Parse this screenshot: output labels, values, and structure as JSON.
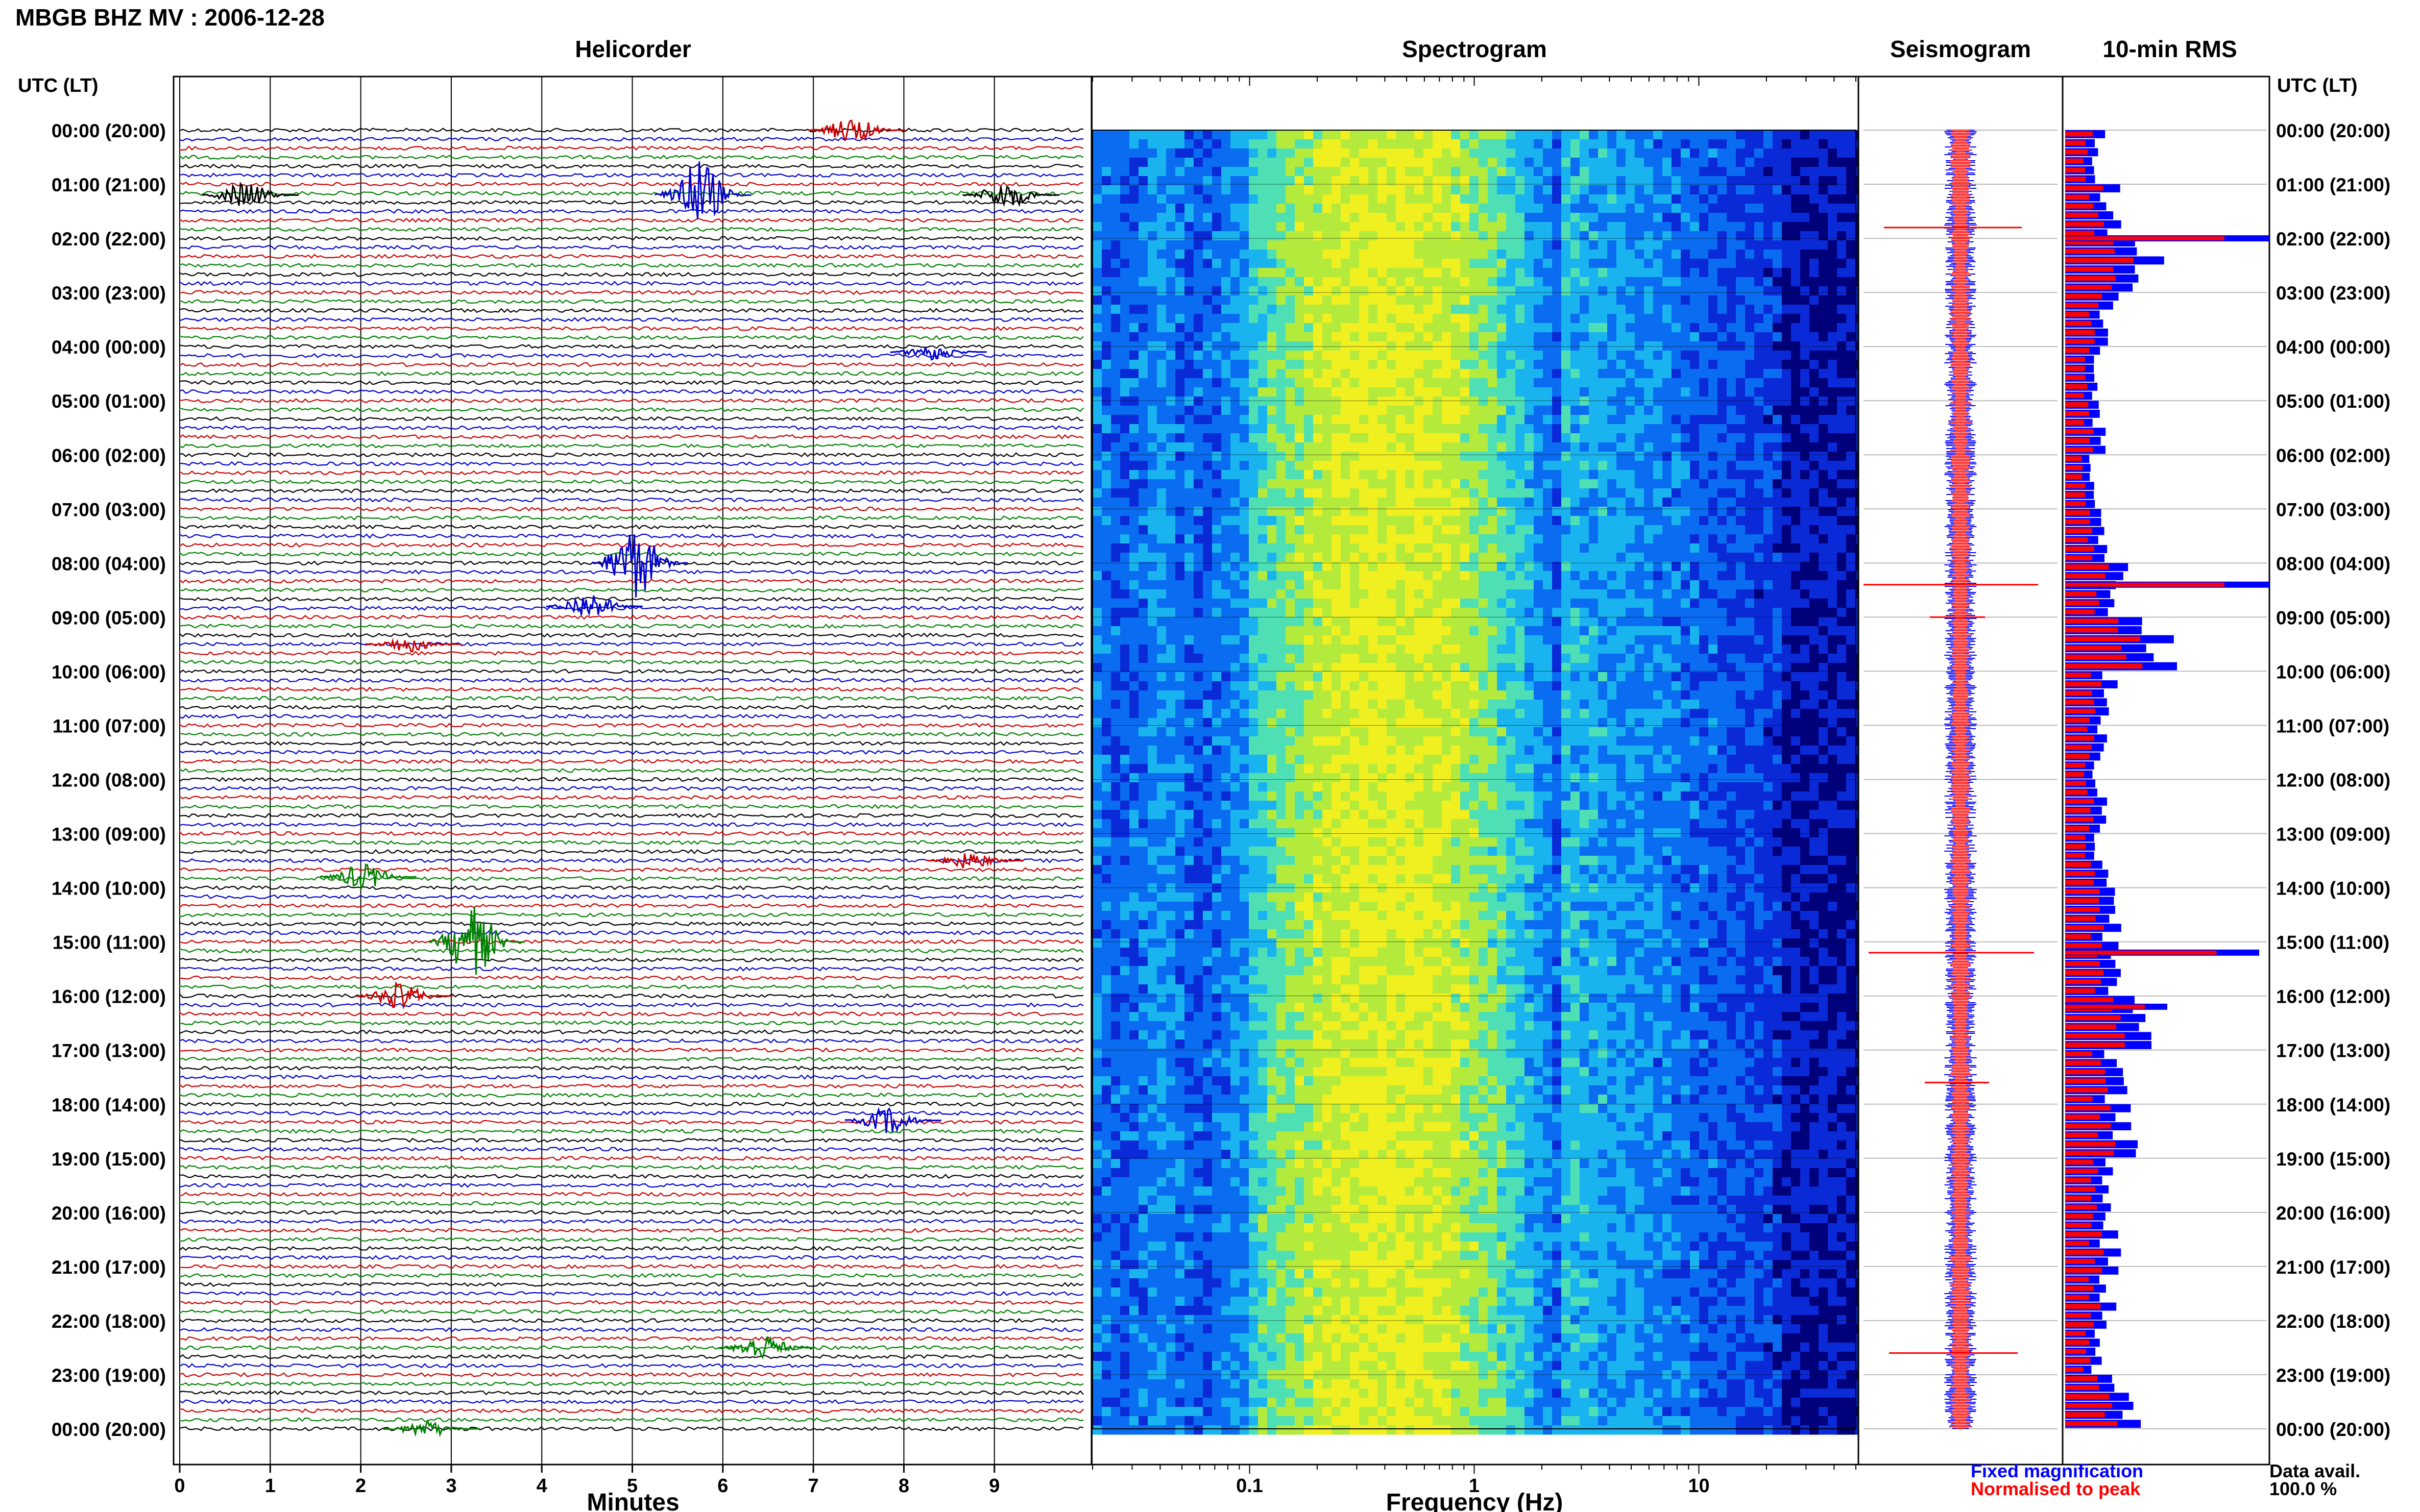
{
  "header": {
    "station_title": "MBGB BHZ MV : 2006-12-28",
    "utc_label_left": "UTC (LT)",
    "utc_label_right": "UTC (LT)"
  },
  "panels": {
    "helicorder": "Helicorder",
    "spectrogram": "Spectrogram",
    "seismogram": "Seismogram",
    "rms": "10-min RMS"
  },
  "time_labels": [
    "00:00 (20:00)",
    "01:00 (21:00)",
    "02:00 (22:00)",
    "03:00 (23:00)",
    "04:00 (00:00)",
    "05:00 (01:00)",
    "06:00 (02:00)",
    "07:00 (03:00)",
    "08:00 (04:00)",
    "09:00 (05:00)",
    "10:00 (06:00)",
    "11:00 (07:00)",
    "12:00 (08:00)",
    "13:00 (09:00)",
    "14:00 (10:00)",
    "15:00 (11:00)",
    "16:00 (12:00)",
    "17:00 (13:00)",
    "18:00 (14:00)",
    "19:00 (15:00)",
    "20:00 (16:00)",
    "21:00 (17:00)",
    "22:00 (18:00)",
    "23:00 (19:00)",
    "00:00 (20:00)"
  ],
  "legend": {
    "fixed": "Fixed magnification",
    "normalised": "Normalised to peak",
    "fixed_color": "#0000ff",
    "normalised_color": "#ff0000",
    "data_avail_label": "Data avail.",
    "data_avail_value": "100.0 %"
  },
  "chart_data": [
    {
      "type": "line",
      "title": "Helicorder",
      "xlabel": "Minutes",
      "xlim": [
        0,
        10
      ],
      "x_ticks": [
        "0",
        "1",
        "2",
        "3",
        "4",
        "5",
        "6",
        "7",
        "8",
        "9"
      ],
      "trace_colors": [
        "#000000",
        "#0000cc",
        "#cc0000",
        "#008000"
      ],
      "rows_per_hour": 6,
      "events": [
        {
          "hour_row": 0.0,
          "minute": 7.4,
          "color": "#cc0000",
          "amp": "medium"
        },
        {
          "hour_row": 1.2,
          "minute": 0.7,
          "color": "#000000",
          "amp": "medium"
        },
        {
          "hour_row": 1.2,
          "minute": 5.7,
          "color": "#0000cc",
          "amp": "large"
        },
        {
          "hour_row": 1.2,
          "minute": 9.1,
          "color": "#000000",
          "amp": "medium"
        },
        {
          "hour_row": 4.1,
          "minute": 8.3,
          "color": "#0000cc",
          "amp": "small"
        },
        {
          "hour_row": 8.0,
          "minute": 5.0,
          "color": "#0000cc",
          "amp": "large"
        },
        {
          "hour_row": 8.8,
          "minute": 4.5,
          "color": "#0000cc",
          "amp": "medium"
        },
        {
          "hour_row": 9.5,
          "minute": 2.5,
          "color": "#cc0000",
          "amp": "small"
        },
        {
          "hour_row": 13.5,
          "minute": 8.7,
          "color": "#cc0000",
          "amp": "small"
        },
        {
          "hour_row": 13.8,
          "minute": 2.0,
          "color": "#008000",
          "amp": "medium"
        },
        {
          "hour_row": 15.0,
          "minute": 3.2,
          "color": "#008000",
          "amp": "large"
        },
        {
          "hour_row": 16.0,
          "minute": 2.4,
          "color": "#cc0000",
          "amp": "medium"
        },
        {
          "hour_row": 18.3,
          "minute": 7.8,
          "color": "#0000cc",
          "amp": "medium"
        },
        {
          "hour_row": 22.5,
          "minute": 6.4,
          "color": "#008000",
          "amp": "medium"
        },
        {
          "hour_row": 24.0,
          "minute": 2.7,
          "color": "#008000",
          "amp": "small"
        }
      ]
    },
    {
      "type": "heatmap",
      "title": "Spectrogram",
      "xlabel": "Frequency (Hz)",
      "x_scale": "log",
      "xlim": [
        0.02,
        50
      ],
      "x_ticks": [
        "0.1",
        "1",
        "10"
      ],
      "colormap": [
        "#00007a",
        "#0a2ad8",
        "#0a6cf0",
        "#19b4f0",
        "#4ee0b4",
        "#b4ea3c",
        "#f0f020"
      ],
      "peak_frequency_hz": 0.4
    },
    {
      "type": "line",
      "title": "Seismogram",
      "series": [
        {
          "name": "Fixed magnification",
          "color": "#0000ff"
        },
        {
          "name": "Normalised to peak",
          "color": "#ff0000"
        }
      ]
    },
    {
      "type": "bar",
      "title": "10-min RMS",
      "orientation": "horizontal",
      "bins": 144,
      "series": [
        {
          "name": "Fixed magnification",
          "color": "#0000ff"
        },
        {
          "name": "Normalised to peak",
          "color": "#ff0000"
        }
      ],
      "rms_hourly_relative": [
        0.3,
        0.4,
        0.75,
        0.4,
        0.32,
        0.3,
        0.28,
        0.32,
        0.45,
        0.8,
        0.4,
        0.3,
        0.3,
        0.32,
        0.4,
        0.45,
        0.7,
        0.45,
        0.55,
        0.38,
        0.4,
        0.38,
        0.3,
        0.55,
        0.35
      ]
    }
  ]
}
